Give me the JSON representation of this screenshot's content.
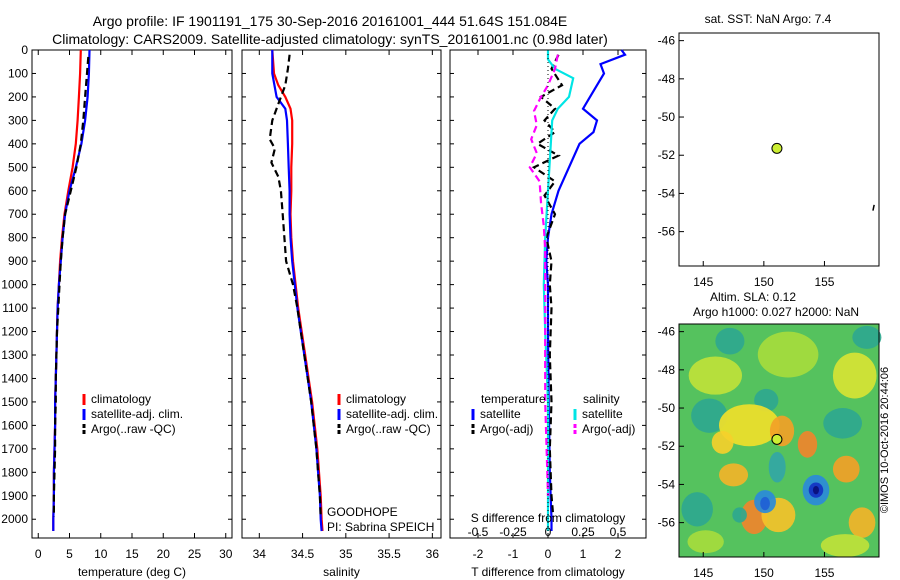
{
  "header": {
    "line1": "Argo profile: IF 1901191_175 30-Sep-2016 20161001_444 51.64S 151.084E",
    "line2": "Climatology: CARS2009. Satellite-adjusted climatology: synTS_20161001.nc (0.98d later)"
  },
  "colors": {
    "climatology": "#ff0000",
    "satellite": "#0000ff",
    "argo": "#000000",
    "salinity_satellite": "#00e5e5",
    "salinity_argo": "#ff00ff",
    "marker": "#ccee33"
  },
  "chart_data": [
    {
      "type": "line",
      "xlabel": "temperature (deg C)",
      "xlim": [
        -1,
        31
      ],
      "xticks": [
        "0",
        "5",
        "10",
        "15",
        "20",
        "25",
        "30"
      ],
      "ylim": [
        2080,
        0
      ],
      "yticks": [
        "0",
        "100",
        "200",
        "300",
        "400",
        "500",
        "600",
        "700",
        "800",
        "900",
        "1000",
        "1100",
        "1200",
        "1300",
        "1400",
        "1500",
        "1600",
        "1700",
        "1800",
        "1900",
        "2000"
      ],
      "legend": [
        "climatology",
        "satellite-adj. clim.",
        "Argo(..raw -QC)"
      ],
      "series": [
        {
          "name": "climatology",
          "points": [
            [
              6.8,
              0
            ],
            [
              6.7,
              100
            ],
            [
              6.5,
              200
            ],
            [
              6.3,
              300
            ],
            [
              6,
              400
            ],
            [
              5.5,
              500
            ],
            [
              4.8,
              600
            ],
            [
              4.2,
              700
            ],
            [
              3.8,
              800
            ],
            [
              3.5,
              900
            ],
            [
              3.3,
              1000
            ],
            [
              3.1,
              1100
            ],
            [
              3,
              1200
            ],
            [
              2.9,
              1300
            ],
            [
              2.8,
              1400
            ],
            [
              2.7,
              1500
            ],
            [
              2.7,
              1600
            ],
            [
              2.6,
              1700
            ],
            [
              2.5,
              1800
            ],
            [
              2.5,
              1900
            ],
            [
              2.4,
              2000
            ],
            [
              2.4,
              2050
            ]
          ]
        },
        {
          "name": "satellite-adj. clim.",
          "points": [
            [
              8.2,
              0
            ],
            [
              8.1,
              100
            ],
            [
              7.9,
              200
            ],
            [
              7.5,
              300
            ],
            [
              6.9,
              400
            ],
            [
              6,
              500
            ],
            [
              5,
              600
            ],
            [
              4.3,
              700
            ],
            [
              3.9,
              800
            ],
            [
              3.6,
              900
            ],
            [
              3.3,
              1000
            ],
            [
              3.1,
              1100
            ],
            [
              3,
              1200
            ],
            [
              2.9,
              1300
            ],
            [
              2.8,
              1400
            ],
            [
              2.7,
              1500
            ],
            [
              2.7,
              1600
            ],
            [
              2.6,
              1700
            ],
            [
              2.5,
              1800
            ],
            [
              2.5,
              1900
            ],
            [
              2.4,
              2000
            ],
            [
              2.4,
              2050
            ]
          ]
        },
        {
          "name": "Argo(..raw -QC)",
          "points": [
            [
              8,
              30
            ],
            [
              7.8,
              100
            ],
            [
              7.5,
              200
            ],
            [
              7.2,
              300
            ],
            [
              6.8,
              400
            ],
            [
              6.1,
              500
            ],
            [
              5.2,
              600
            ],
            [
              4.3,
              700
            ],
            [
              3.9,
              800
            ],
            [
              3.6,
              900
            ],
            [
              3.4,
              1000
            ],
            [
              3.2,
              1100
            ],
            [
              3,
              1200
            ],
            [
              2.9,
              1300
            ],
            [
              2.8,
              1400
            ],
            [
              2.8,
              1500
            ],
            [
              2.7,
              1600
            ],
            [
              2.7,
              1700
            ],
            [
              2.6,
              1800
            ],
            [
              2.5,
              1900
            ],
            [
              2.5,
              1990
            ]
          ]
        }
      ]
    },
    {
      "type": "line",
      "xlabel": "salinity",
      "xlim": [
        33.8,
        36.1
      ],
      "xticks": [
        "34",
        "34.5",
        "35",
        "35.5",
        "36"
      ],
      "ylim": [
        2080,
        0
      ],
      "legend": [
        "climatology",
        "satellite-adj. clim.",
        "Argo(..raw -QC)"
      ],
      "annotations": [
        "GOODHOPE",
        "PI: Sabrina SPEICH"
      ],
      "series": [
        {
          "name": "climatology",
          "points": [
            [
              34.15,
              0
            ],
            [
              34.17,
              100
            ],
            [
              34.22,
              150
            ],
            [
              34.3,
              200
            ],
            [
              34.36,
              250
            ],
            [
              34.38,
              300
            ],
            [
              34.38,
              400
            ],
            [
              34.37,
              500
            ],
            [
              34.37,
              600
            ],
            [
              34.36,
              700
            ],
            [
              34.37,
              800
            ],
            [
              34.39,
              900
            ],
            [
              34.42,
              1000
            ],
            [
              34.45,
              1100
            ],
            [
              34.49,
              1200
            ],
            [
              34.53,
              1300
            ],
            [
              34.57,
              1400
            ],
            [
              34.61,
              1500
            ],
            [
              34.64,
              1600
            ],
            [
              34.67,
              1700
            ],
            [
              34.69,
              1800
            ],
            [
              34.71,
              1900
            ],
            [
              34.72,
              2000
            ],
            [
              34.73,
              2050
            ]
          ]
        },
        {
          "name": "satellite-adj. clim.",
          "points": [
            [
              34.15,
              0
            ],
            [
              34.15,
              100
            ],
            [
              34.2,
              200
            ],
            [
              34.3,
              250
            ],
            [
              34.32,
              300
            ],
            [
              34.33,
              400
            ],
            [
              34.34,
              500
            ],
            [
              34.35,
              600
            ],
            [
              34.35,
              700
            ],
            [
              34.36,
              800
            ],
            [
              34.38,
              900
            ],
            [
              34.41,
              1000
            ],
            [
              34.44,
              1100
            ],
            [
              34.48,
              1200
            ],
            [
              34.52,
              1300
            ],
            [
              34.56,
              1400
            ],
            [
              34.6,
              1500
            ],
            [
              34.63,
              1600
            ],
            [
              34.66,
              1700
            ],
            [
              34.68,
              1800
            ],
            [
              34.7,
              1900
            ],
            [
              34.71,
              2000
            ],
            [
              34.72,
              2050
            ]
          ]
        },
        {
          "name": "Argo(..raw -QC)",
          "points": [
            [
              34.35,
              20
            ],
            [
              34.33,
              80
            ],
            [
              34.3,
              150
            ],
            [
              34.22,
              230
            ],
            [
              34.15,
              300
            ],
            [
              34.12,
              380
            ],
            [
              34.18,
              420
            ],
            [
              34.14,
              480
            ],
            [
              34.22,
              540
            ],
            [
              34.25,
              600
            ],
            [
              34.27,
              700
            ],
            [
              34.29,
              800
            ],
            [
              34.31,
              900
            ],
            [
              34.39,
              1000
            ],
            [
              34.44,
              1100
            ],
            [
              34.48,
              1200
            ],
            [
              34.52,
              1300
            ],
            [
              34.56,
              1400
            ],
            [
              34.6,
              1500
            ],
            [
              34.63,
              1600
            ],
            [
              34.66,
              1700
            ],
            [
              34.68,
              1800
            ],
            [
              34.7,
              1900
            ],
            [
              34.71,
              1990
            ]
          ]
        }
      ]
    },
    {
      "type": "line",
      "xlabel": "T difference from climatology",
      "x2label": "S difference from climatology",
      "xlim": [
        -2.8,
        2.8
      ],
      "xticks": [
        "-2",
        "-1",
        "0",
        "1",
        "2"
      ],
      "x2ticks": [
        "-0.5",
        "-0.25",
        "0",
        "0.25",
        "0.5"
      ],
      "ylim": [
        2080,
        0
      ],
      "legend_temperature": [
        "temperature",
        "satellite",
        "Argo(-adj)"
      ],
      "legend_salinity": [
        "salinity",
        "satellite",
        "Argo(-adj)"
      ],
      "series": [
        {
          "name": "satellite",
          "group": "temperature",
          "points": [
            [
              2.1,
              0
            ],
            [
              2.2,
              20
            ],
            [
              1.5,
              60
            ],
            [
              1.6,
              100
            ],
            [
              1.4,
              150
            ],
            [
              1.2,
              200
            ],
            [
              1,
              250
            ],
            [
              1.4,
              300
            ],
            [
              1.3,
              350
            ],
            [
              0.9,
              400
            ],
            [
              0.6,
              500
            ],
            [
              0.3,
              600
            ],
            [
              0.1,
              700
            ],
            [
              0,
              800
            ],
            [
              -0.05,
              900
            ],
            [
              0,
              1000
            ],
            [
              0,
              1200
            ],
            [
              0.02,
              1500
            ],
            [
              0.05,
              1800
            ],
            [
              0.1,
              2000
            ],
            [
              0.1,
              2050
            ]
          ]
        },
        {
          "name": "Argo(-adj)",
          "group": "temperature",
          "points": [
            [
              0.3,
              20
            ],
            [
              0.1,
              80
            ],
            [
              0.4,
              150
            ],
            [
              -0.2,
              200
            ],
            [
              0.2,
              250
            ],
            [
              -0.1,
              300
            ],
            [
              0.2,
              350
            ],
            [
              -0.3,
              400
            ],
            [
              0.3,
              450
            ],
            [
              -0.4,
              500
            ],
            [
              0.2,
              560
            ],
            [
              -0.1,
              620
            ],
            [
              0.2,
              700
            ],
            [
              -0.05,
              800
            ],
            [
              0.1,
              900
            ],
            [
              0.05,
              1000
            ],
            [
              0.1,
              1100
            ],
            [
              0.05,
              1300
            ],
            [
              0.1,
              1500
            ],
            [
              0.05,
              1700
            ],
            [
              0.1,
              1900
            ],
            [
              0.15,
              1990
            ]
          ]
        },
        {
          "name": "satellite",
          "group": "salinity",
          "points": [
            [
              0,
              0
            ],
            [
              0,
              40
            ],
            [
              0.05,
              80
            ],
            [
              0.18,
              120
            ],
            [
              0.15,
              200
            ],
            [
              0.07,
              250
            ],
            [
              0.03,
              300
            ],
            [
              0.02,
              400
            ],
            [
              0,
              600
            ],
            [
              -0.02,
              800
            ],
            [
              -0.03,
              1000
            ],
            [
              -0.02,
              1200
            ],
            [
              0,
              1500
            ],
            [
              0,
              1800
            ],
            [
              0,
              2000
            ],
            [
              0,
              2050
            ]
          ]
        },
        {
          "name": "Argo(-adj)",
          "group": "salinity",
          "points": [
            [
              0.07,
              20
            ],
            [
              0.05,
              80
            ],
            [
              0,
              150
            ],
            [
              -0.05,
              200
            ],
            [
              -0.1,
              260
            ],
            [
              -0.08,
              320
            ],
            [
              -0.12,
              380
            ],
            [
              -0.08,
              440
            ],
            [
              -0.13,
              500
            ],
            [
              -0.06,
              560
            ],
            [
              -0.05,
              650
            ],
            [
              -0.03,
              750
            ],
            [
              -0.02,
              850
            ],
            [
              -0.02,
              1000
            ],
            [
              -0.02,
              1200
            ],
            [
              -0.02,
              1500
            ],
            [
              -0.01,
              1700
            ],
            [
              0,
              1900
            ]
          ]
        }
      ]
    },
    {
      "type": "scatter",
      "title": "sat. SST: NaN Argo: 7.4",
      "xlim": [
        143,
        159.5
      ],
      "ylim": [
        -57.8,
        -45.6
      ],
      "xticks": [
        "145",
        "150",
        "155"
      ],
      "yticks": [
        "-46",
        "-48",
        "-50",
        "-52",
        "-54",
        "-56"
      ],
      "points": [
        [
          151.08,
          -51.64
        ]
      ]
    },
    {
      "type": "heatmap",
      "title_line1": "Altim. SLA: 0.12",
      "title_line2": "Argo h1000: 0.027 h2000: NaN",
      "xlim": [
        143,
        159.5
      ],
      "ylim": [
        -57.8,
        -45.6
      ],
      "xticks": [
        "145",
        "150",
        "155"
      ],
      "yticks": [
        "-46",
        "-48",
        "-50",
        "-52",
        "-54",
        "-56"
      ],
      "points": [
        [
          151.08,
          -51.64
        ]
      ]
    }
  ],
  "watermark": "©IMOS 10-Oct-2016 20:44:06"
}
